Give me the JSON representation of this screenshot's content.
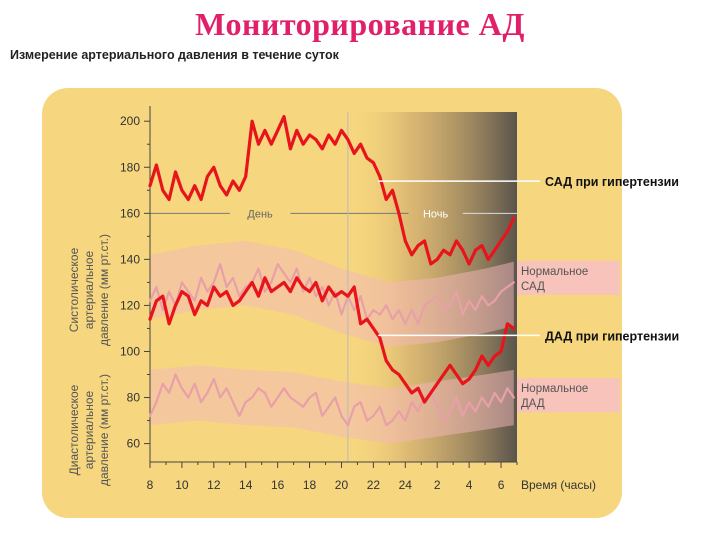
{
  "slide": {
    "title": "Мониторирование АД",
    "subtitle": "Измерение артериального давления в течение суток"
  },
  "colors": {
    "title": "#e0206a",
    "panel": "#f6d67e",
    "hypertension_line": "#e8141c",
    "normal_line": "#e8a0a8",
    "normal_band": "#f4b8bc"
  },
  "chart_data": {
    "type": "line",
    "xlabel": "Время (часы)",
    "ylabel_systolic": "Систолическое артериальное давление (мм рт.ст.)",
    "ylabel_diastolic": "Диастолическое артериальное давление (мм рт.ст.)",
    "x_ticks": [
      "8",
      "10",
      "12",
      "14",
      "16",
      "18",
      "20",
      "22",
      "24",
      "2",
      "4",
      "6"
    ],
    "y_ticks": [
      60,
      80,
      100,
      120,
      140,
      160,
      180,
      200
    ],
    "xlim": [
      8,
      31
    ],
    "ylim": [
      52,
      204
    ],
    "period_labels": {
      "day": "День",
      "night": "Ночь"
    },
    "series": [
      {
        "name": "САД при гипертензии",
        "x": [
          8.0,
          8.4,
          8.8,
          9.2,
          9.6,
          10.0,
          10.4,
          10.8,
          11.2,
          11.6,
          12.0,
          12.4,
          12.8,
          13.2,
          13.6,
          14.0,
          14.4,
          14.8,
          15.2,
          15.6,
          16.0,
          16.4,
          16.8,
          17.2,
          17.6,
          18.0,
          18.4,
          18.8,
          19.2,
          19.6,
          20.0,
          20.4,
          20.8,
          21.2,
          21.6,
          22.0,
          22.4,
          22.8,
          23.2,
          23.6,
          24.0,
          24.4,
          24.8,
          25.2,
          25.6,
          26.0,
          26.4,
          26.8,
          27.2,
          27.6,
          28.0,
          28.4,
          28.8,
          29.2,
          29.6,
          30.0,
          30.4,
          30.8
        ],
        "values": [
          172,
          181,
          170,
          166,
          178,
          170,
          166,
          172,
          166,
          176,
          180,
          172,
          168,
          174,
          170,
          176,
          200,
          190,
          196,
          190,
          196,
          202,
          188,
          196,
          190,
          194,
          192,
          188,
          194,
          190,
          196,
          192,
          186,
          190,
          184,
          182,
          176,
          166,
          170,
          160,
          148,
          142,
          146,
          148,
          138,
          140,
          144,
          142,
          148,
          144,
          138,
          144,
          146,
          140,
          144,
          148,
          152,
          158
        ]
      },
      {
        "name": "Нормальное САД",
        "x": [
          8.0,
          8.4,
          8.8,
          9.2,
          9.6,
          10.0,
          10.4,
          10.8,
          11.2,
          11.6,
          12.0,
          12.4,
          12.8,
          13.2,
          13.6,
          14.0,
          14.4,
          14.8,
          15.2,
          15.6,
          16.0,
          16.4,
          16.8,
          17.2,
          17.6,
          18.0,
          18.4,
          18.8,
          19.2,
          19.6,
          20.0,
          20.4,
          20.8,
          21.2,
          21.6,
          22.0,
          22.4,
          22.8,
          23.2,
          23.6,
          24.0,
          24.4,
          24.8,
          25.2,
          25.6,
          26.0,
          26.4,
          26.8,
          27.2,
          27.6,
          28.0,
          28.4,
          28.8,
          29.2,
          29.6,
          30.0,
          30.4,
          30.8
        ],
        "values": [
          122,
          128,
          118,
          126,
          120,
          130,
          126,
          122,
          132,
          126,
          130,
          138,
          128,
          132,
          124,
          128,
          130,
          136,
          126,
          130,
          138,
          134,
          130,
          136,
          126,
          132,
          124,
          128,
          120,
          126,
          116,
          124,
          118,
          124,
          114,
          118,
          116,
          120,
          114,
          118,
          112,
          118,
          112,
          120,
          122,
          124,
          118,
          120,
          126,
          116,
          122,
          118,
          124,
          120,
          122,
          126,
          128,
          130
        ]
      },
      {
        "name": "ДАД при гипертензии",
        "x": [
          8.0,
          8.4,
          8.8,
          9.2,
          9.6,
          10.0,
          10.4,
          10.8,
          11.2,
          11.6,
          12.0,
          12.4,
          12.8,
          13.2,
          13.6,
          14.0,
          14.4,
          14.8,
          15.2,
          15.6,
          16.0,
          16.4,
          16.8,
          17.2,
          17.6,
          18.0,
          18.4,
          18.8,
          19.2,
          19.6,
          20.0,
          20.4,
          20.8,
          21.2,
          21.6,
          22.0,
          22.4,
          22.8,
          23.2,
          23.6,
          24.0,
          24.4,
          24.8,
          25.2,
          25.6,
          26.0,
          26.4,
          26.8,
          27.2,
          27.6,
          28.0,
          28.4,
          28.8,
          29.2,
          29.6,
          30.0,
          30.4,
          30.8
        ],
        "values": [
          114,
          122,
          124,
          112,
          120,
          126,
          124,
          116,
          122,
          120,
          128,
          124,
          126,
          120,
          122,
          126,
          130,
          124,
          132,
          126,
          128,
          130,
          126,
          132,
          128,
          126,
          130,
          122,
          128,
          124,
          126,
          124,
          128,
          112,
          114,
          110,
          106,
          96,
          92,
          90,
          86,
          82,
          84,
          78,
          82,
          86,
          90,
          94,
          90,
          86,
          88,
          92,
          98,
          94,
          98,
          100,
          112,
          110
        ]
      },
      {
        "name": "Нормальное ДАД",
        "x": [
          8.0,
          8.4,
          8.8,
          9.2,
          9.6,
          10.0,
          10.4,
          10.8,
          11.2,
          11.6,
          12.0,
          12.4,
          12.8,
          13.2,
          13.6,
          14.0,
          14.4,
          14.8,
          15.2,
          15.6,
          16.0,
          16.4,
          16.8,
          17.2,
          17.6,
          18.0,
          18.4,
          18.8,
          19.2,
          19.6,
          20.0,
          20.4,
          20.8,
          21.2,
          21.6,
          22.0,
          22.4,
          22.8,
          23.2,
          23.6,
          24.0,
          24.4,
          24.8,
          25.2,
          25.6,
          26.0,
          26.4,
          26.8,
          27.2,
          27.6,
          28.0,
          28.4,
          28.8,
          29.2,
          29.6,
          30.0,
          30.4,
          30.8
        ],
        "values": [
          72,
          78,
          86,
          82,
          90,
          84,
          80,
          86,
          78,
          82,
          88,
          80,
          84,
          78,
          72,
          78,
          80,
          84,
          82,
          76,
          80,
          84,
          80,
          78,
          76,
          80,
          82,
          72,
          76,
          80,
          72,
          68,
          76,
          78,
          70,
          72,
          76,
          68,
          70,
          74,
          70,
          78,
          74,
          80,
          82,
          76,
          70,
          74,
          80,
          72,
          78,
          74,
          80,
          76,
          82,
          78,
          84,
          80
        ]
      }
    ],
    "legend": [
      {
        "label": "САД при гипертензии",
        "y": 174
      },
      {
        "label": "Нормальное САД",
        "y": 132
      },
      {
        "label": "ДАД при гипертензии",
        "y": 107
      },
      {
        "label": "Нормальное ДАД",
        "y": 81
      }
    ]
  }
}
